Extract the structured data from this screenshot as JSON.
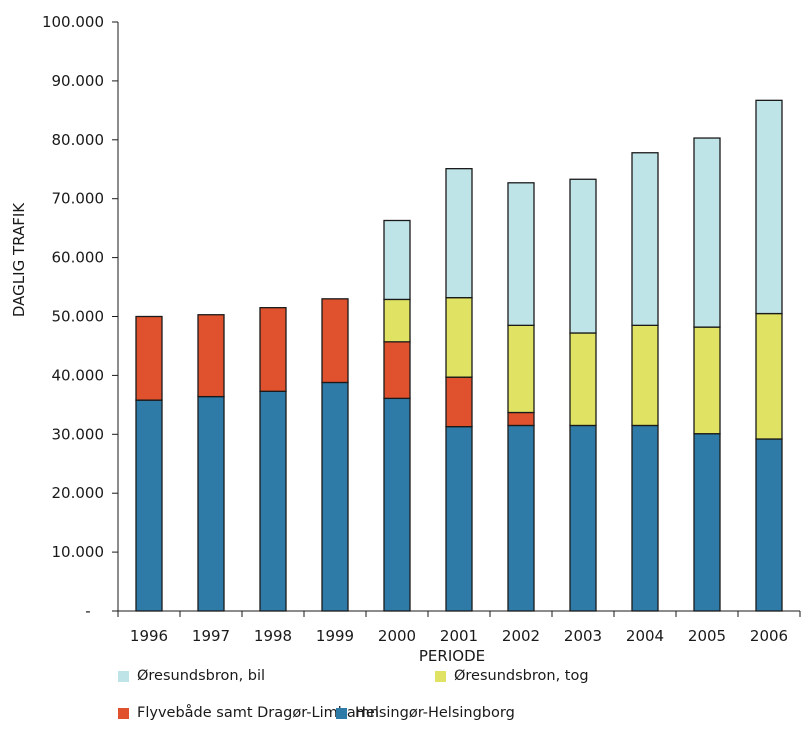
{
  "chart_data": {
    "type": "bar",
    "stacked": true,
    "xlabel": "PERIODE",
    "ylabel": "DAGLIG TRAFIK",
    "ylim": [
      0,
      100000
    ],
    "y_ticks": [
      {
        "value": 0,
        "label": "-"
      },
      {
        "value": 10000,
        "label": "10.000"
      },
      {
        "value": 20000,
        "label": "20.000"
      },
      {
        "value": 30000,
        "label": "30.000"
      },
      {
        "value": 40000,
        "label": "40.000"
      },
      {
        "value": 50000,
        "label": "50.000"
      },
      {
        "value": 60000,
        "label": "60.000"
      },
      {
        "value": 70000,
        "label": "70.000"
      },
      {
        "value": 80000,
        "label": "80.000"
      },
      {
        "value": 90000,
        "label": "90.000"
      },
      {
        "value": 100000,
        "label": "100.000"
      }
    ],
    "categories": [
      "1996",
      "1997",
      "1998",
      "1999",
      "2000",
      "2001",
      "2002",
      "2003",
      "2004",
      "2005",
      "2006"
    ],
    "series": [
      {
        "name": "Helsingør-Helsingborg",
        "color": "#2f7ba8",
        "values": [
          35800,
          36400,
          37300,
          38800,
          36100,
          31300,
          31500,
          31500,
          31500,
          30100,
          29200
        ]
      },
      {
        "name": "Flyvebåde samt Dragør-Limhamn",
        "color": "#e0522d",
        "values": [
          14200,
          13900,
          14200,
          14200,
          9600,
          8400,
          2200,
          0,
          0,
          0,
          0
        ]
      },
      {
        "name": "Øresundsbron, tog",
        "color": "#dfe262",
        "values": [
          0,
          0,
          0,
          0,
          7200,
          13500,
          14800,
          15700,
          17000,
          18100,
          21300
        ]
      },
      {
        "name": "Øresundsbron, bil",
        "color": "#bfe4e8",
        "values": [
          0,
          0,
          0,
          0,
          13400,
          21900,
          24200,
          26100,
          29300,
          32100,
          36200
        ]
      }
    ],
    "legend": {
      "position": "bottom",
      "order": [
        "Øresundsbron, bil",
        "Øresundsbron, tog",
        "Flyvebåde samt Dragør-Limhamn",
        "Helsingør-Helsingborg"
      ]
    },
    "grid": false
  }
}
